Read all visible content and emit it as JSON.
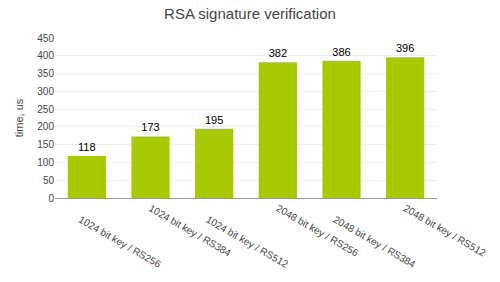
{
  "chart_data": {
    "type": "bar",
    "title": "RSA signature verification",
    "categories": [
      "1024 bit key / RS256",
      "1024 bit key / RS384",
      "1024 bit key / RS512",
      "2048 bit key / RS256",
      "2048 bit key / RS384",
      "2048 bit key / RS512"
    ],
    "values": [
      118,
      173,
      195,
      382,
      386,
      396
    ],
    "color": "#a8c800",
    "ylabel": "time, us",
    "ylim": [
      0,
      450
    ],
    "yticks": [
      0,
      50,
      100,
      150,
      200,
      250,
      300,
      350,
      400,
      450
    ],
    "grid": true,
    "data_labels": true
  }
}
